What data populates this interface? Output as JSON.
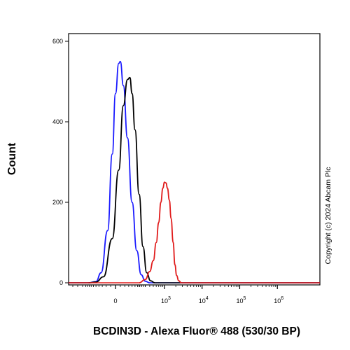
{
  "chart_data": {
    "type": "line",
    "title": "",
    "xlabel": "BCDIN3D - Alexa Fluor® 488 (530/30 BP)",
    "ylabel": "Count",
    "copyright": "Copyright (c) 2024 Abcam Plc",
    "x_scale": "biexponential",
    "ylim": [
      0,
      600
    ],
    "y_ticks": [
      0,
      200,
      400,
      600
    ],
    "x_ticks": [
      {
        "value": 0,
        "label": "0",
        "sup": ""
      },
      {
        "value": 1000,
        "label": "10",
        "sup": "3"
      },
      {
        "value": 10000,
        "label": "10",
        "sup": "4"
      },
      {
        "value": 100000,
        "label": "10",
        "sup": "5"
      },
      {
        "value": 1000000,
        "label": "10",
        "sup": "6"
      }
    ],
    "grid": false,
    "legend": "none",
    "series": [
      {
        "color": "#1a1aff",
        "points": [
          [
            -250,
            0
          ],
          [
            -150,
            3
          ],
          [
            -100,
            25
          ],
          [
            -50,
            130
          ],
          [
            -20,
            320
          ],
          [
            0,
            470
          ],
          [
            20,
            545
          ],
          [
            30,
            550
          ],
          [
            50,
            490
          ],
          [
            80,
            360
          ],
          [
            120,
            200
          ],
          [
            170,
            80
          ],
          [
            230,
            20
          ],
          [
            300,
            4
          ],
          [
            400,
            0
          ]
        ]
      },
      {
        "color": "#000000",
        "points": [
          [
            -250,
            0
          ],
          [
            -150,
            2
          ],
          [
            -80,
            15
          ],
          [
            -20,
            110
          ],
          [
            20,
            280
          ],
          [
            50,
            440
          ],
          [
            80,
            505
          ],
          [
            100,
            510
          ],
          [
            120,
            470
          ],
          [
            150,
            380
          ],
          [
            200,
            220
          ],
          [
            260,
            90
          ],
          [
            330,
            25
          ],
          [
            420,
            5
          ],
          [
            550,
            0
          ]
        ]
      },
      {
        "color": "#e01b1b",
        "points": [
          [
            200,
            0
          ],
          [
            300,
            8
          ],
          [
            400,
            28
          ],
          [
            500,
            55
          ],
          [
            600,
            100
          ],
          [
            700,
            150
          ],
          [
            800,
            200
          ],
          [
            900,
            235
          ],
          [
            1000,
            250
          ],
          [
            1100,
            248
          ],
          [
            1200,
            235
          ],
          [
            1350,
            205
          ],
          [
            1500,
            160
          ],
          [
            1700,
            100
          ],
          [
            1900,
            45
          ],
          [
            2100,
            18
          ],
          [
            2400,
            5
          ],
          [
            2800,
            0
          ]
        ]
      }
    ]
  }
}
